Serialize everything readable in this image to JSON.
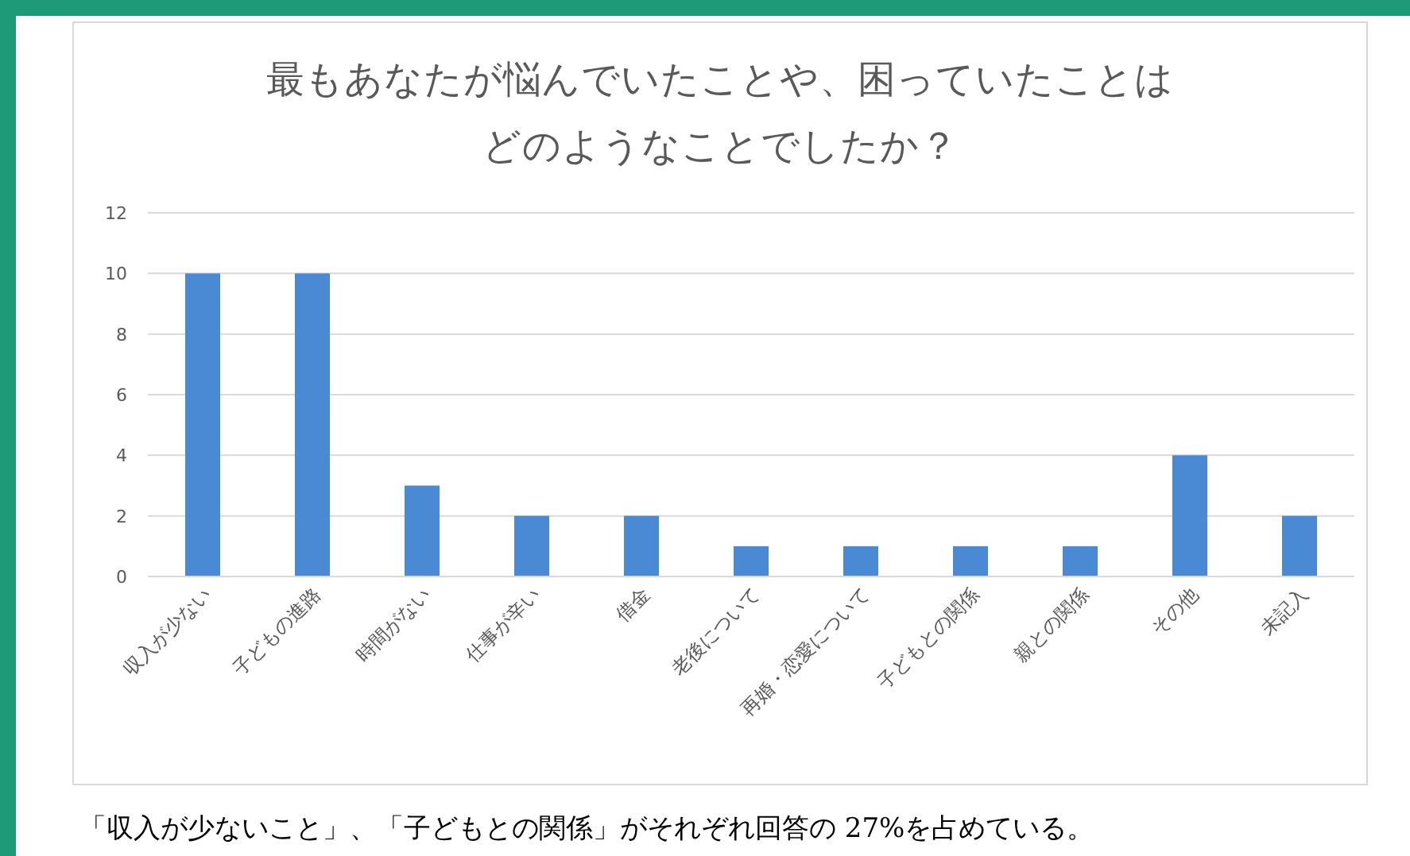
{
  "chart_data": {
    "type": "bar",
    "title": "最もあなたが悩んでいたことや、困っていたことは",
    "subtitle": "どのようなことでしたか？",
    "categories": [
      "収入が少ない",
      "子どもの進路",
      "時間がない",
      "仕事が辛い",
      "借金",
      "老後について",
      "再婚・恋愛について",
      "子どもとの関係",
      "親との関係",
      "その他",
      "未記入"
    ],
    "values": [
      10,
      10,
      3,
      2,
      2,
      1,
      1,
      1,
      1,
      4,
      2
    ],
    "color": "#4a8ad4",
    "ylim": [
      0,
      12
    ],
    "yticks": [
      0,
      2,
      4,
      6,
      8,
      10,
      12
    ],
    "grid": "y",
    "annotations": [
      "「収入が少ないこと」、「子どもとの関係」がそれぞれ回答の 27%を占めている。"
    ]
  }
}
